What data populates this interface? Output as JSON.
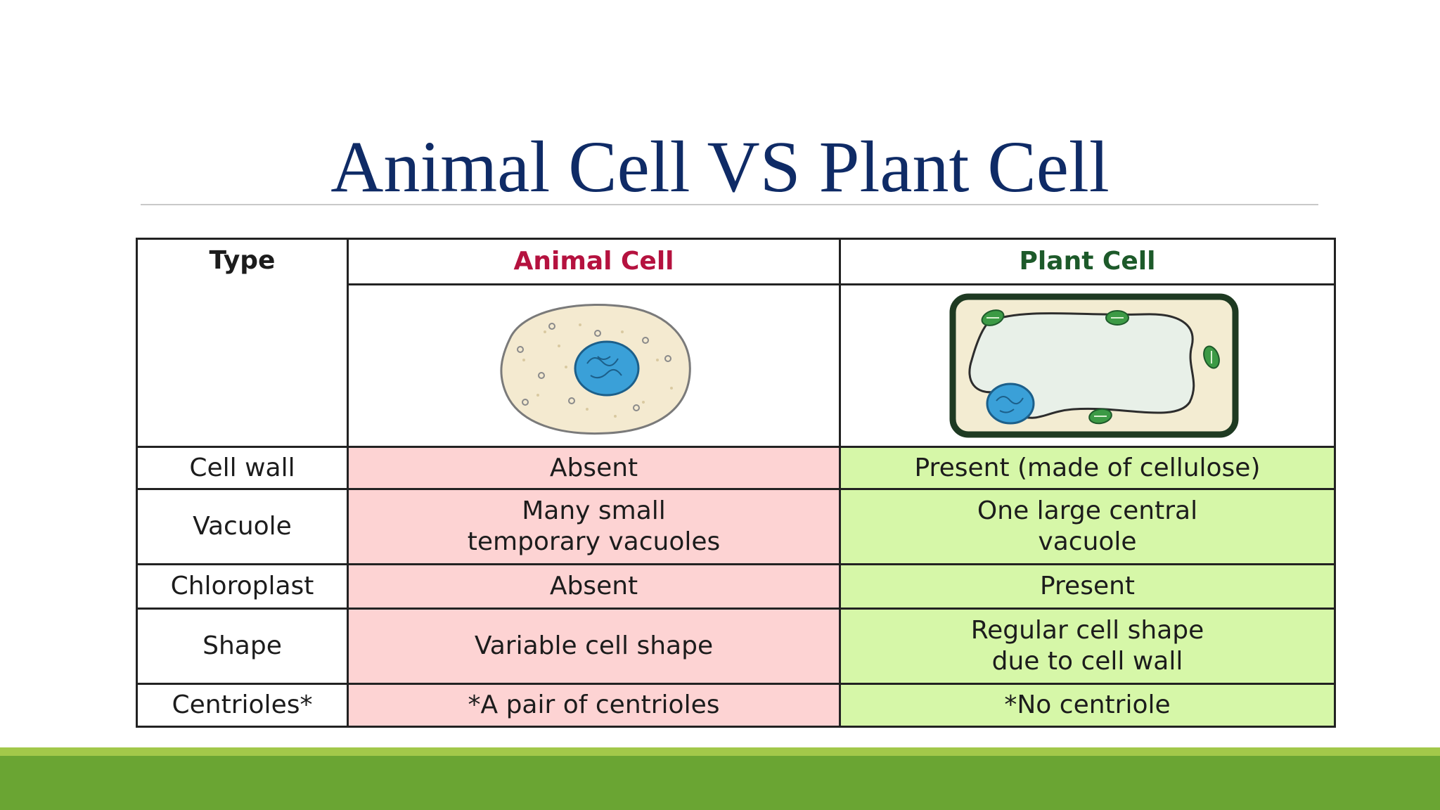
{
  "slide": {
    "title": "Animal Cell VS Plant Cell"
  },
  "table": {
    "headers": {
      "type": "Type",
      "animal": "Animal Cell",
      "plant": "Plant Cell"
    },
    "rows": [
      {
        "label": "Cell wall",
        "animal": "Absent",
        "plant": "Present (made of cellulose)"
      },
      {
        "label": "Vacuole",
        "animal": "Many small\ntemporary vacuoles",
        "plant": "One large central\nvacuole"
      },
      {
        "label": "Chloroplast",
        "animal": "Absent",
        "plant": "Present"
      },
      {
        "label": "Shape",
        "animal": "Variable cell shape",
        "plant": "Regular cell shape\ndue to cell wall"
      },
      {
        "label": "Centrioles*",
        "animal": "*A pair of centrioles",
        "plant": "*No centriole"
      }
    ]
  },
  "colors": {
    "title": "#0f2b66",
    "animal_header": "#b5123f",
    "plant_header": "#1d5a2a",
    "animal_fill": "#fdd3d3",
    "plant_fill": "#d6f7a8",
    "footer_light": "#a2c84a",
    "footer_dark": "#6aa533"
  },
  "icons": {
    "animal_cell": "animal-cell-illustration",
    "plant_cell": "plant-cell-illustration"
  }
}
